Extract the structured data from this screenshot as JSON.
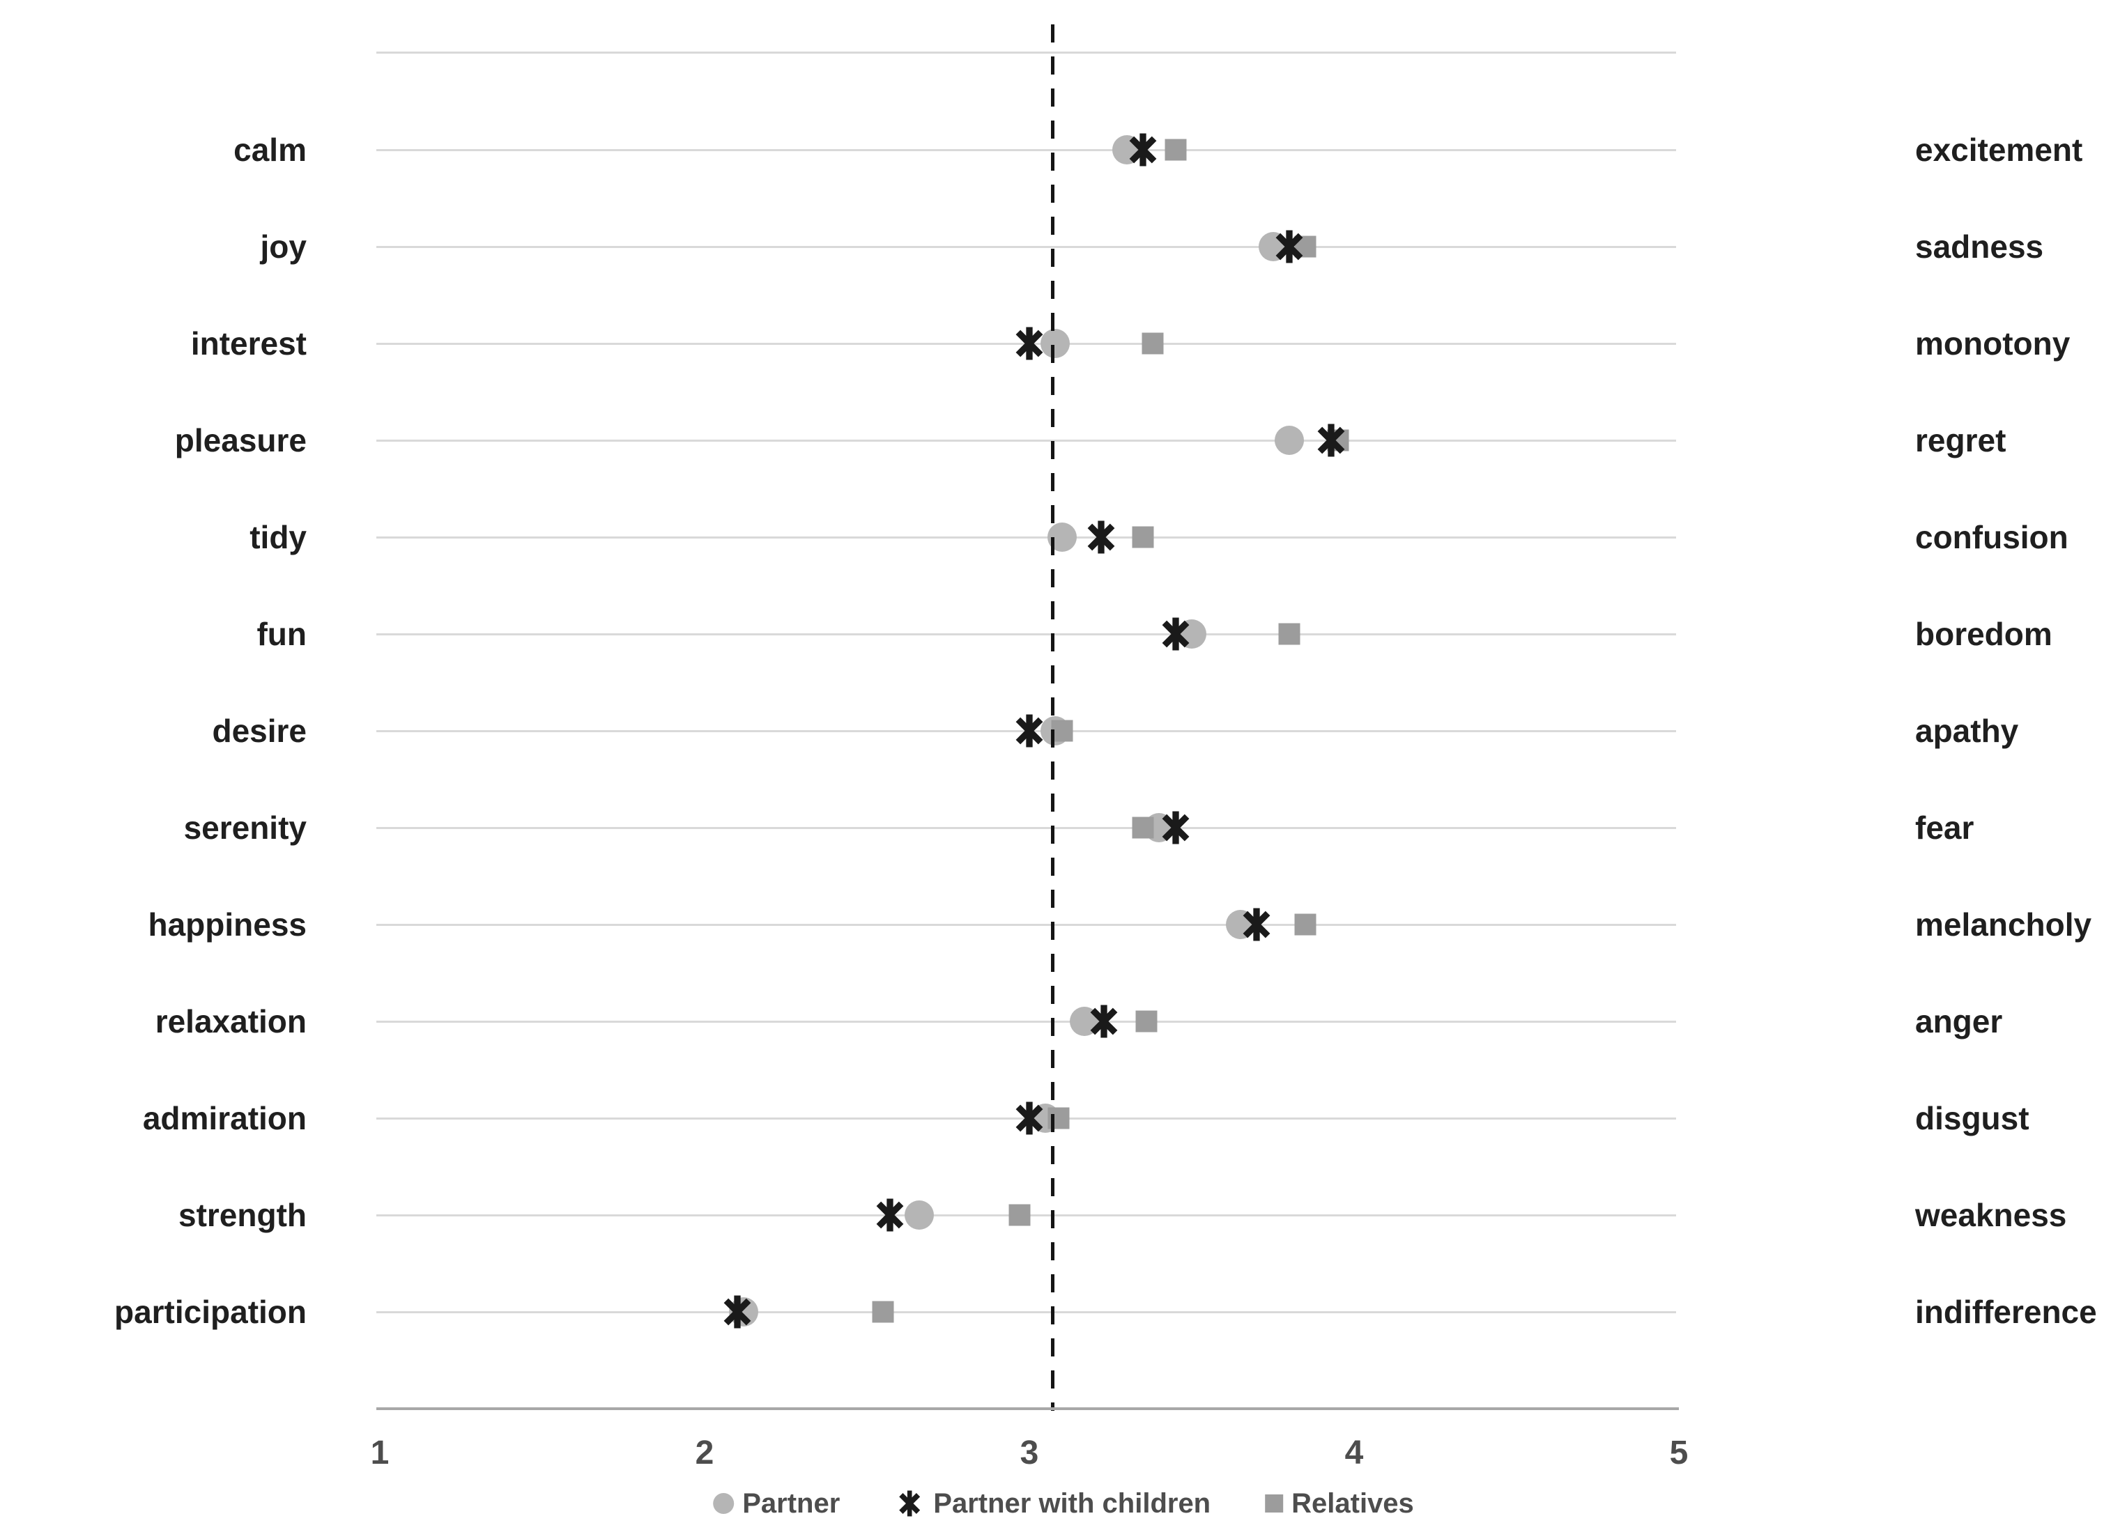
{
  "chart_data": {
    "type": "scatter",
    "title": "",
    "description": "Semantic differential dot plot: mean ratings (1-5) of opposing feeling pairs for three family groups",
    "x_axis": {
      "min": 1,
      "max": 5,
      "ticks": [
        "1",
        "2",
        "3",
        "4",
        "5"
      ],
      "grid": "horizontal-rows",
      "midline_value": 3.07
    },
    "legend_position": "bottom-center",
    "legend": [
      {
        "name": "Partner",
        "marker": "circle",
        "color": "#b5b5b5"
      },
      {
        "name": "Partner with children",
        "marker": "star",
        "color": "#1a1a1a"
      },
      {
        "name": "Relatives",
        "marker": "square",
        "color": "#9c9c9c"
      }
    ],
    "rows": [
      {
        "left": "calm",
        "right": "excitement",
        "partner": 3.3,
        "partner_with_children": 3.35,
        "relatives": 3.45
      },
      {
        "left": "joy",
        "right": "sadness",
        "partner": 3.75,
        "partner_with_children": 3.8,
        "relatives": 3.85
      },
      {
        "left": "interest",
        "right": "monotony",
        "partner": 3.08,
        "partner_with_children": 3.0,
        "relatives": 3.38
      },
      {
        "left": "pleasure",
        "right": "regret",
        "partner": 3.8,
        "partner_with_children": 3.93,
        "relatives": 3.95
      },
      {
        "left": "tidy",
        "right": "confusion",
        "partner": 3.1,
        "partner_with_children": 3.22,
        "relatives": 3.35
      },
      {
        "left": "fun",
        "right": "boredom",
        "partner": 3.5,
        "partner_with_children": 3.45,
        "relatives": 3.8
      },
      {
        "left": "desire",
        "right": "apathy",
        "partner": 3.08,
        "partner_with_children": 3.0,
        "relatives": 3.1
      },
      {
        "left": "serenity",
        "right": "fear",
        "partner": 3.4,
        "partner_with_children": 3.45,
        "relatives": 3.35
      },
      {
        "left": "happiness",
        "right": "melancholy",
        "partner": 3.65,
        "partner_with_children": 3.7,
        "relatives": 3.85
      },
      {
        "left": "relaxation",
        "right": "anger",
        "partner": 3.17,
        "partner_with_children": 3.23,
        "relatives": 3.36
      },
      {
        "left": "admiration",
        "right": "disgust",
        "partner": 3.05,
        "partner_with_children": 3.0,
        "relatives": 3.09
      },
      {
        "left": "strength",
        "right": "weakness",
        "partner": 2.66,
        "partner_with_children": 2.57,
        "relatives": 2.97
      },
      {
        "left": "participation",
        "right": "indifference",
        "partner": 2.12,
        "partner_with_children": 2.1,
        "relatives": 2.55
      }
    ],
    "colors": {
      "partner": "#b5b5b5",
      "partner_with_children": "#1a1a1a",
      "relatives": "#9c9c9c",
      "gridline": "#d9d9d9",
      "axis": "#a8a8a8",
      "midline": "#151515",
      "tick_text": "#4d4d4d",
      "label_text": "#1f1f1f"
    }
  }
}
